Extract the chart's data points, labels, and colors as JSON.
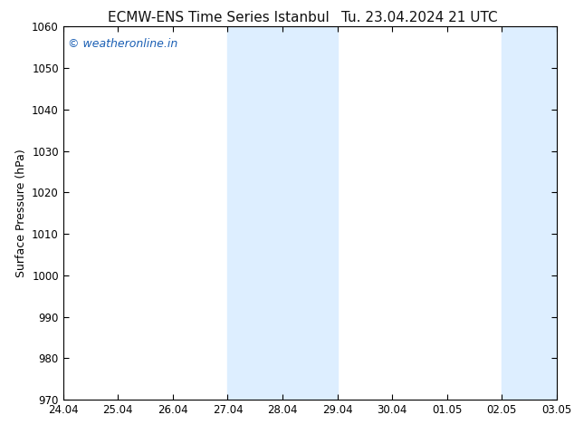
{
  "title_left": "ECMW-ENS Time Series Istanbul",
  "title_right": "Tu. 23.04.2024 21 UTC",
  "ylabel": "Surface Pressure (hPa)",
  "bg_color": "#ffffff",
  "plot_bg_color": "#ffffff",
  "shade_color": "#ddeeff",
  "watermark": "© weatheronline.in",
  "watermark_color": "#1a5fb4",
  "ylim": [
    970,
    1060
  ],
  "yticks": [
    970,
    980,
    990,
    1000,
    1010,
    1020,
    1030,
    1040,
    1050,
    1060
  ],
  "x_labels": [
    "24.04",
    "25.04",
    "26.04",
    "27.04",
    "28.04",
    "29.04",
    "30.04",
    "01.05",
    "02.05",
    "03.05"
  ],
  "x_positions": [
    0,
    1,
    2,
    3,
    4,
    5,
    6,
    7,
    8,
    9
  ],
  "xlim": [
    0,
    9
  ],
  "shaded_regions": [
    {
      "x_start": 3,
      "x_end": 5
    },
    {
      "x_start": 8,
      "x_end": 9
    }
  ],
  "title_fontsize": 11,
  "ylabel_fontsize": 9,
  "tick_fontsize": 8.5,
  "watermark_fontsize": 9
}
